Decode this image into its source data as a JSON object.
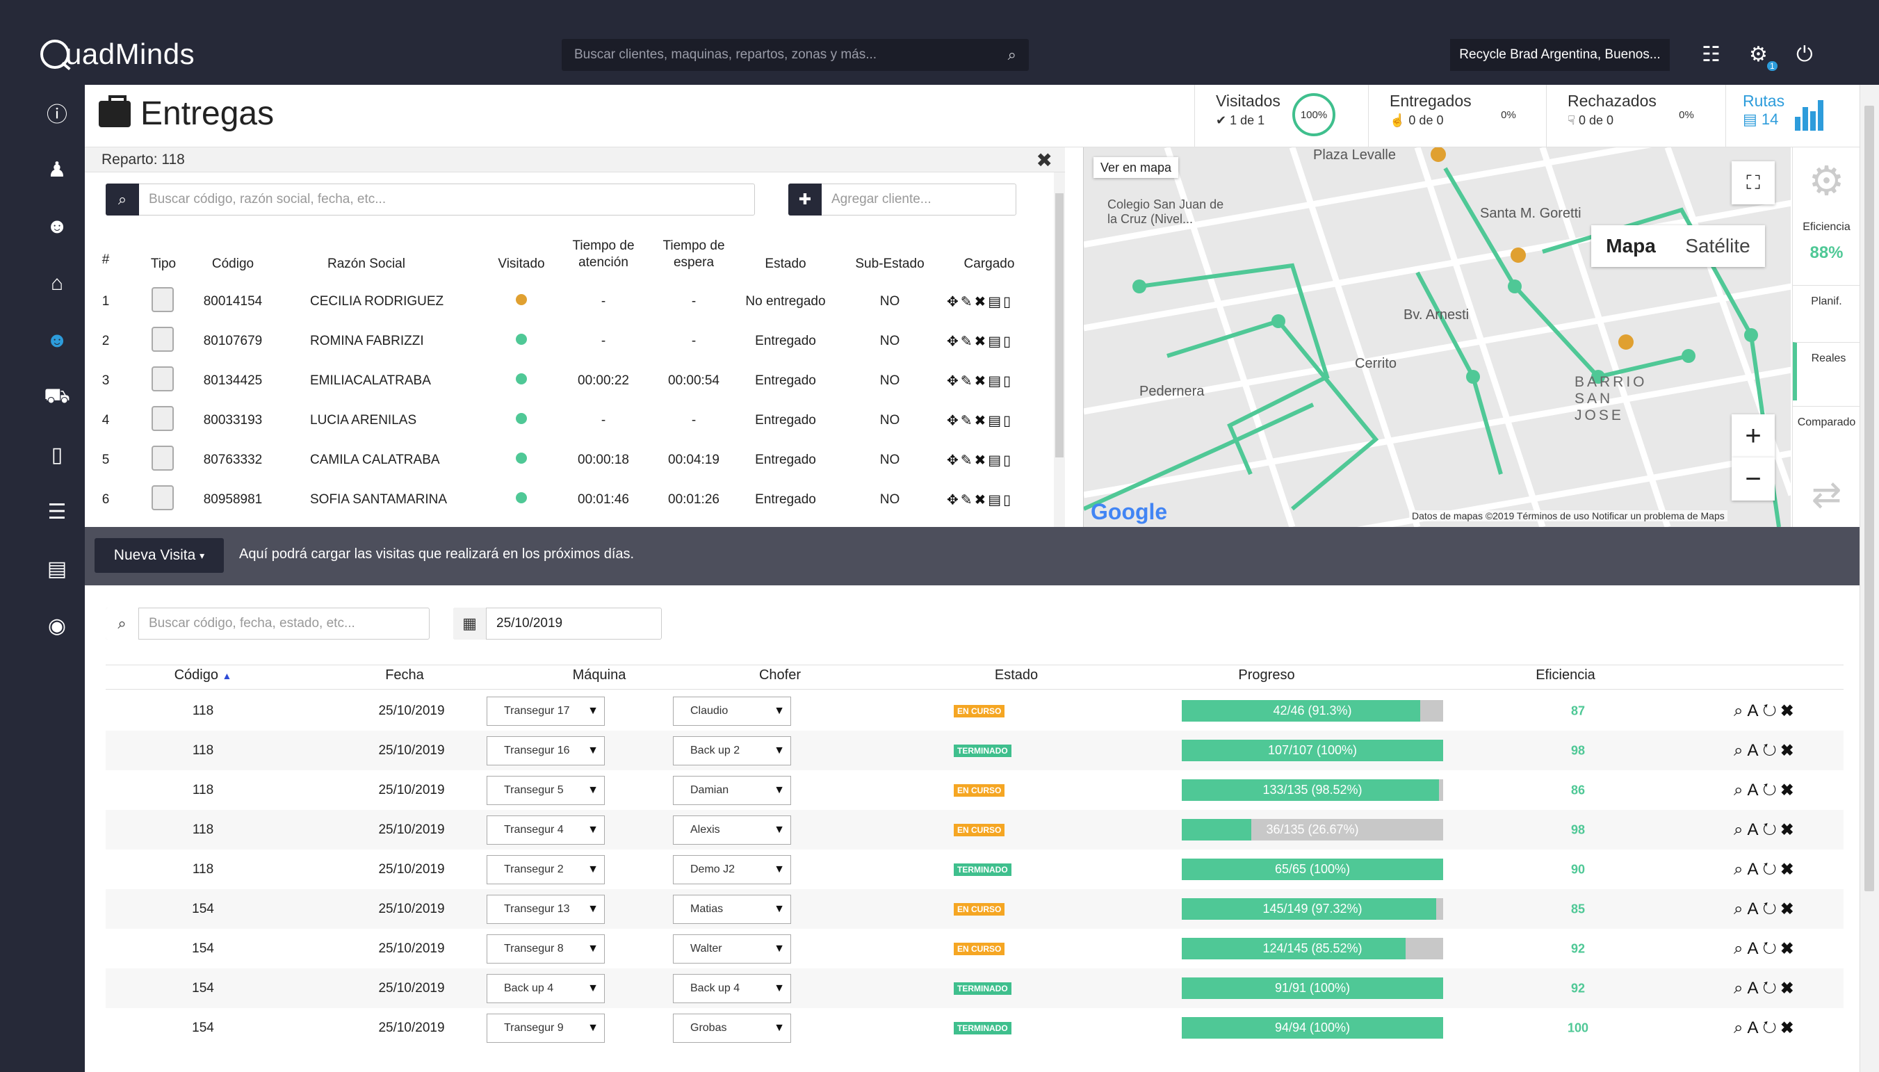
{
  "app": {
    "logo": "uadMinds",
    "search_placeholder": "Buscar clientes, maquinas, repartos, zonas y más...",
    "company": "Recycle Brad Argentina, Buenos...",
    "notif_count": "1"
  },
  "header": {
    "title": "Entregas",
    "visitados": {
      "label": "Visitados",
      "sub": "1 de 1",
      "pct": "100%"
    },
    "entregados": {
      "label": "Entregados",
      "sub": "0 de 0",
      "pct": "0%"
    },
    "rechazados": {
      "label": "Rechazados",
      "sub": "0 de 0",
      "pct": "0%"
    },
    "rutas": {
      "label": "Rutas",
      "sub": "14"
    }
  },
  "reparto": {
    "title": "Reparto: 118",
    "search_placeholder": "Buscar código, razón social, fecha, etc...",
    "add_placeholder": "Agregar cliente...",
    "columns": {
      "num": "#",
      "tipo": "Tipo",
      "codigo": "Código",
      "razon": "Razón Social",
      "visitado": "Visitado",
      "tiempo_atencion": "Tiempo de atención",
      "tiempo_espera": "Tiempo de espera",
      "estado": "Estado",
      "subestado": "Sub-Estado",
      "cargado": "Cargado"
    },
    "rows": [
      {
        "n": "1",
        "codigo": "80014154",
        "razon": "CECILIA RODRIGUEZ",
        "visit_color": "#e0a030",
        "atencion": "-",
        "espera": "-",
        "estado": "No entregado",
        "sub": "NO"
      },
      {
        "n": "2",
        "codigo": "80107679",
        "razon": "ROMINA FABRIZZI",
        "visit_color": "#4fc896",
        "atencion": "-",
        "espera": "-",
        "estado": "Entregado",
        "sub": "NO"
      },
      {
        "n": "3",
        "codigo": "80134425",
        "razon": "EMILIACALATRABA",
        "visit_color": "#4fc896",
        "atencion": "00:00:22",
        "espera": "00:00:54",
        "estado": "Entregado",
        "sub": "NO"
      },
      {
        "n": "4",
        "codigo": "80033193",
        "razon": "LUCIA ARENILAS",
        "visit_color": "#4fc896",
        "atencion": "-",
        "espera": "-",
        "estado": "Entregado",
        "sub": "NO"
      },
      {
        "n": "5",
        "codigo": "80763332",
        "razon": "CAMILA CALATRABA",
        "visit_color": "#4fc896",
        "atencion": "00:00:18",
        "espera": "00:04:19",
        "estado": "Entregado",
        "sub": "NO"
      },
      {
        "n": "6",
        "codigo": "80958981",
        "razon": "SOFIA SANTAMARINA",
        "visit_color": "#4fc896",
        "atencion": "00:01:46",
        "espera": "00:01:26",
        "estado": "Entregado",
        "sub": "NO"
      }
    ]
  },
  "map": {
    "ver_en_mapa": "Ver en mapa",
    "type_map": "Mapa",
    "type_sat": "Satélite",
    "labels": [
      "Colegio San Juan de la Cruz (Nivel...",
      "Santa M. Goretti",
      "BARRIO SAN JOSE",
      "Plaza Levalle",
      "Pedernera",
      "Cerrito",
      "Bv. Arnesti"
    ],
    "footer": "Datos de mapas ©2019   Términos de uso   Notificar un problema de Maps",
    "google": "Google"
  },
  "side_panel": {
    "eficiencia_label": "Eficiencia",
    "eficiencia_value": "88%",
    "planif": "Planif.",
    "reales": "Reales",
    "comparado": "Comparado"
  },
  "visita": {
    "button": "Nueva Visita",
    "message": "Aquí podrá cargar las visitas que realizará en los próximos días."
  },
  "lower": {
    "search_placeholder": "Buscar código, fecha, estado, etc...",
    "date": "25/10/2019",
    "columns": {
      "codigo": "Código",
      "fecha": "Fecha",
      "maquina": "Máquina",
      "chofer": "Chofer",
      "estado": "Estado",
      "progreso": "Progreso",
      "eficiencia": "Eficiencia"
    },
    "rows": [
      {
        "codigo": "118",
        "fecha": "25/10/2019",
        "maquina": "Transegur 17",
        "chofer": "Claudio",
        "estado": "EN CURSO",
        "estado_color": "#f5a623",
        "progreso": "42/46 (91.3%)",
        "pct": 91.3,
        "eficiencia": "87"
      },
      {
        "codigo": "118",
        "fecha": "25/10/2019",
        "maquina": "Transegur 16",
        "chofer": "Back up 2",
        "estado": "TERMINADO",
        "estado_color": "#3fbf8d",
        "progreso": "107/107 (100%)",
        "pct": 100,
        "eficiencia": "98"
      },
      {
        "codigo": "118",
        "fecha": "25/10/2019",
        "maquina": "Transegur 5",
        "chofer": "Damian",
        "estado": "EN CURSO",
        "estado_color": "#f5a623",
        "progreso": "133/135 (98.52%)",
        "pct": 98.52,
        "eficiencia": "86"
      },
      {
        "codigo": "118",
        "fecha": "25/10/2019",
        "maquina": "Transegur 4",
        "chofer": "Alexis",
        "estado": "EN CURSO",
        "estado_color": "#f5a623",
        "progreso": "36/135 (26.67%)",
        "pct": 26.67,
        "eficiencia": "98"
      },
      {
        "codigo": "118",
        "fecha": "25/10/2019",
        "maquina": "Transegur 2",
        "chofer": "Demo J2",
        "estado": "TERMINADO",
        "estado_color": "#3fbf8d",
        "progreso": "65/65 (100%)",
        "pct": 100,
        "eficiencia": "90"
      },
      {
        "codigo": "154",
        "fecha": "25/10/2019",
        "maquina": "Transegur 13",
        "chofer": "Matias",
        "estado": "EN CURSO",
        "estado_color": "#f5a623",
        "progreso": "145/149 (97.32%)",
        "pct": 97.32,
        "eficiencia": "85"
      },
      {
        "codigo": "154",
        "fecha": "25/10/2019",
        "maquina": "Transegur 8",
        "chofer": "Walter",
        "estado": "EN CURSO",
        "estado_color": "#f5a623",
        "progreso": "124/145 (85.52%)",
        "pct": 85.52,
        "eficiencia": "92"
      },
      {
        "codigo": "154",
        "fecha": "25/10/2019",
        "maquina": "Back up 4",
        "chofer": "Back up 4",
        "estado": "TERMINADO",
        "estado_color": "#3fbf8d",
        "progreso": "91/91 (100%)",
        "pct": 100,
        "eficiencia": "92"
      },
      {
        "codigo": "154",
        "fecha": "25/10/2019",
        "maquina": "Transegur 9",
        "chofer": "Grobas",
        "estado": "TERMINADO",
        "estado_color": "#3fbf8d",
        "progreso": "94/94 (100%)",
        "pct": 100,
        "eficiencia": "100"
      }
    ]
  }
}
